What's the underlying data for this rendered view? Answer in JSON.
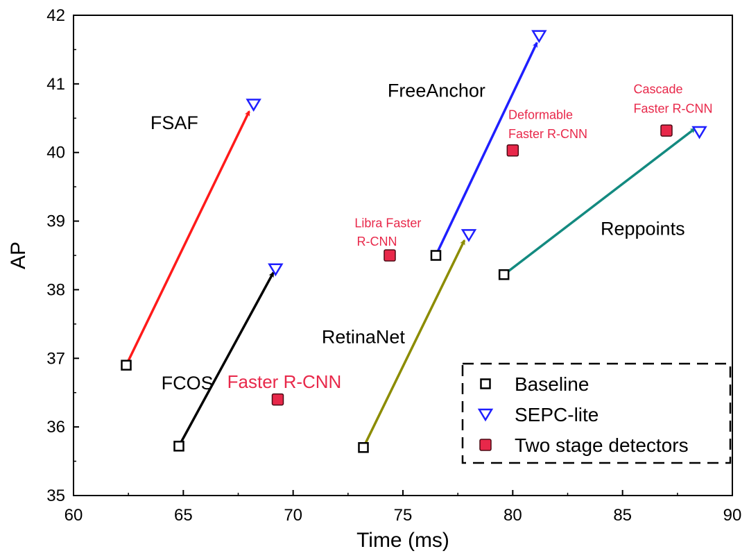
{
  "chart_data": {
    "type": "scatter",
    "xlabel": "Time (ms)",
    "ylabel": "AP",
    "xlim": [
      60,
      90
    ],
    "ylim": [
      35,
      42
    ],
    "x_ticks": [
      "60",
      "65",
      "70",
      "75",
      "80",
      "85",
      "90"
    ],
    "y_ticks": [
      "35",
      "36",
      "37",
      "38",
      "39",
      "40",
      "41",
      "42"
    ],
    "grid": false,
    "legend_position": "bottom-right",
    "legend": [
      {
        "label": "Baseline",
        "marker": "square-open",
        "color": "#000000"
      },
      {
        "label": "SEPC-lite",
        "marker": "triangle-down-open",
        "color": "#1f1fff"
      },
      {
        "label": "Two stage detectors",
        "marker": "square-filled",
        "color": "#e8284a"
      }
    ],
    "series": [
      {
        "name": "Baseline",
        "marker": "square-open",
        "points": [
          {
            "x": 62.4,
            "y": 36.9
          },
          {
            "x": 64.8,
            "y": 35.72
          },
          {
            "x": 73.2,
            "y": 35.7
          },
          {
            "x": 76.5,
            "y": 38.5
          },
          {
            "x": 79.6,
            "y": 38.22
          }
        ]
      },
      {
        "name": "SEPC-lite",
        "marker": "triangle-down-open",
        "points": [
          {
            "x": 68.2,
            "y": 40.7
          },
          {
            "x": 69.2,
            "y": 38.3
          },
          {
            "x": 78.0,
            "y": 38.8
          },
          {
            "x": 81.2,
            "y": 41.7
          },
          {
            "x": 88.5,
            "y": 40.3
          }
        ]
      },
      {
        "name": "Two stage detectors",
        "marker": "square-filled",
        "points": [
          {
            "x": 69.3,
            "y": 36.4
          },
          {
            "x": 74.4,
            "y": 38.5
          },
          {
            "x": 80.0,
            "y": 40.03
          },
          {
            "x": 87.0,
            "y": 40.32
          }
        ]
      }
    ],
    "arrows": [
      {
        "from": [
          62.4,
          36.9
        ],
        "to": [
          68.0,
          40.6
        ],
        "color": "#ff1a1a"
      },
      {
        "from": [
          64.8,
          35.72
        ],
        "to": [
          69.1,
          38.25
        ],
        "color": "#000000"
      },
      {
        "from": [
          73.2,
          35.7
        ],
        "to": [
          77.8,
          38.72
        ],
        "color": "#8c8c00"
      },
      {
        "from": [
          76.5,
          38.5
        ],
        "to": [
          81.1,
          41.6
        ],
        "color": "#1f1fff"
      },
      {
        "from": [
          79.6,
          38.22
        ],
        "to": [
          88.3,
          40.35
        ],
        "color": "#138a80"
      }
    ],
    "annotations": [
      {
        "text": "FSAF",
        "x": 63.5,
        "y": 40.34,
        "color": "#000000",
        "size": 27
      },
      {
        "text": "FCOS",
        "x": 64.0,
        "y": 36.55,
        "color": "#000000",
        "size": 27
      },
      {
        "text": "RetinaNet",
        "x": 71.3,
        "y": 37.22,
        "color": "#000000",
        "size": 27
      },
      {
        "text": "FreeAnchor",
        "x": 74.3,
        "y": 40.81,
        "color": "#000000",
        "size": 27
      },
      {
        "text": "Reppoints",
        "x": 84.0,
        "y": 38.8,
        "color": "#000000",
        "size": 27
      },
      {
        "text": "Faster R-CNN",
        "x": 67.0,
        "y": 36.57,
        "color": "#e8284a",
        "size": 26
      },
      {
        "text": "Libra Faster",
        "x": 72.8,
        "y": 38.91,
        "color": "#e8284a",
        "size": 18
      },
      {
        "text": "R-CNN",
        "x": 72.9,
        "y": 38.64,
        "color": "#e8284a",
        "size": 18
      },
      {
        "text": "Deformable",
        "x": 79.8,
        "y": 40.49,
        "color": "#e8284a",
        "size": 18
      },
      {
        "text": "Faster R-CNN",
        "x": 79.8,
        "y": 40.21,
        "color": "#e8284a",
        "size": 18
      },
      {
        "text": "Cascade",
        "x": 85.5,
        "y": 40.86,
        "color": "#e8284a",
        "size": 18
      },
      {
        "text": "Faster R-CNN",
        "x": 85.5,
        "y": 40.58,
        "color": "#e8284a",
        "size": 18
      }
    ]
  }
}
